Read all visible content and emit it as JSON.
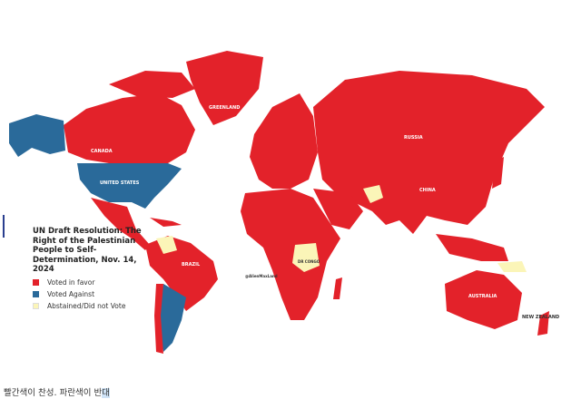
{
  "map": {
    "title": "UN Draft Resolution: The Right of the Palestinian People to Self-Determination, Nov. 14, 2024",
    "watermark": "@AlienMaxLand",
    "labels": {
      "greenland": "GREENLAND",
      "canada": "CANADA",
      "united_states": "UNITED STATES",
      "russia": "RUSSIA",
      "china": "CHINA",
      "brazil": "BRAZIL",
      "australia": "AUSTRALIA",
      "new_zealand": "NEW ZEALAND",
      "dr_congo": "DR CONGO"
    },
    "legend": [
      {
        "label": "Voted in favor",
        "color": "#e3222a"
      },
      {
        "label": "Voted Against",
        "color": "#2a6a9a"
      },
      {
        "label": "Abstained/Did not Vote",
        "color": "#fbf5b8"
      }
    ],
    "colors": {
      "favor": "#e3222a",
      "against": "#2a6a9a",
      "abstain": "#fbf5b8"
    }
  },
  "caption": {
    "text": "빨간색이 찬성. 파란색이 반",
    "selected": "대"
  }
}
